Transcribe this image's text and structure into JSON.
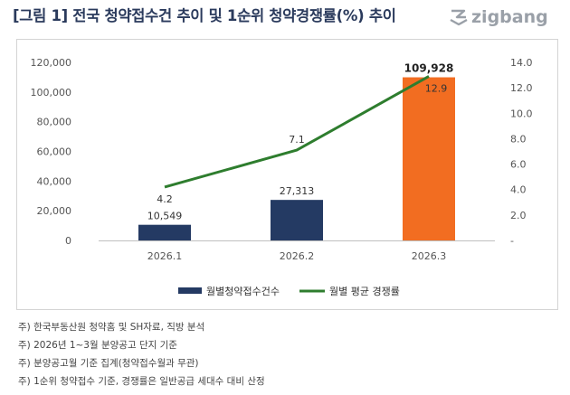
{
  "header": {
    "title": "[그림 1] 전국 청약접수건 추이 및 1순위 청약경쟁률(%) 추이",
    "logo": "zigbang"
  },
  "chart_data": {
    "type": "bar",
    "categories": [
      "2026.1",
      "2026.2",
      "2026.3"
    ],
    "series": [
      {
        "name": "월별청약접수건수",
        "type": "bar",
        "axis": "left",
        "values": [
          10549,
          27313,
          109928
        ],
        "labels": [
          "10,549",
          "27,313",
          "109,928"
        ],
        "colors": [
          "#243a63",
          "#243a63",
          "#f26d21"
        ]
      },
      {
        "name": "월별 평균 경쟁률",
        "type": "line",
        "axis": "right",
        "values": [
          4.2,
          7.1,
          12.9
        ],
        "labels": [
          "4.2",
          "7.1",
          "12.9"
        ],
        "color": "#2e7d2e"
      }
    ],
    "y_left": {
      "range": [
        0,
        120000
      ],
      "ticks": [
        "0",
        "20,000",
        "40,000",
        "60,000",
        "80,000",
        "100,000",
        "120,000"
      ]
    },
    "y_right": {
      "range": [
        0,
        14
      ],
      "ticks": [
        "-",
        "2.0",
        "4.0",
        "6.0",
        "8.0",
        "10.0",
        "12.0",
        "14.0"
      ]
    },
    "grid": false,
    "legend": "bottom"
  },
  "notes": [
    "주) 한국부동산원 청약홈 및 SH자료, 직방 분석",
    "주) 2026년 1~3월 분양공고 단지 기준",
    "주) 분양공고월 기준 집계(청약접수월과 무관)",
    "주) 1순위 청약접수 기준, 경쟁률은 일반공급 세대수 대비 산정"
  ]
}
